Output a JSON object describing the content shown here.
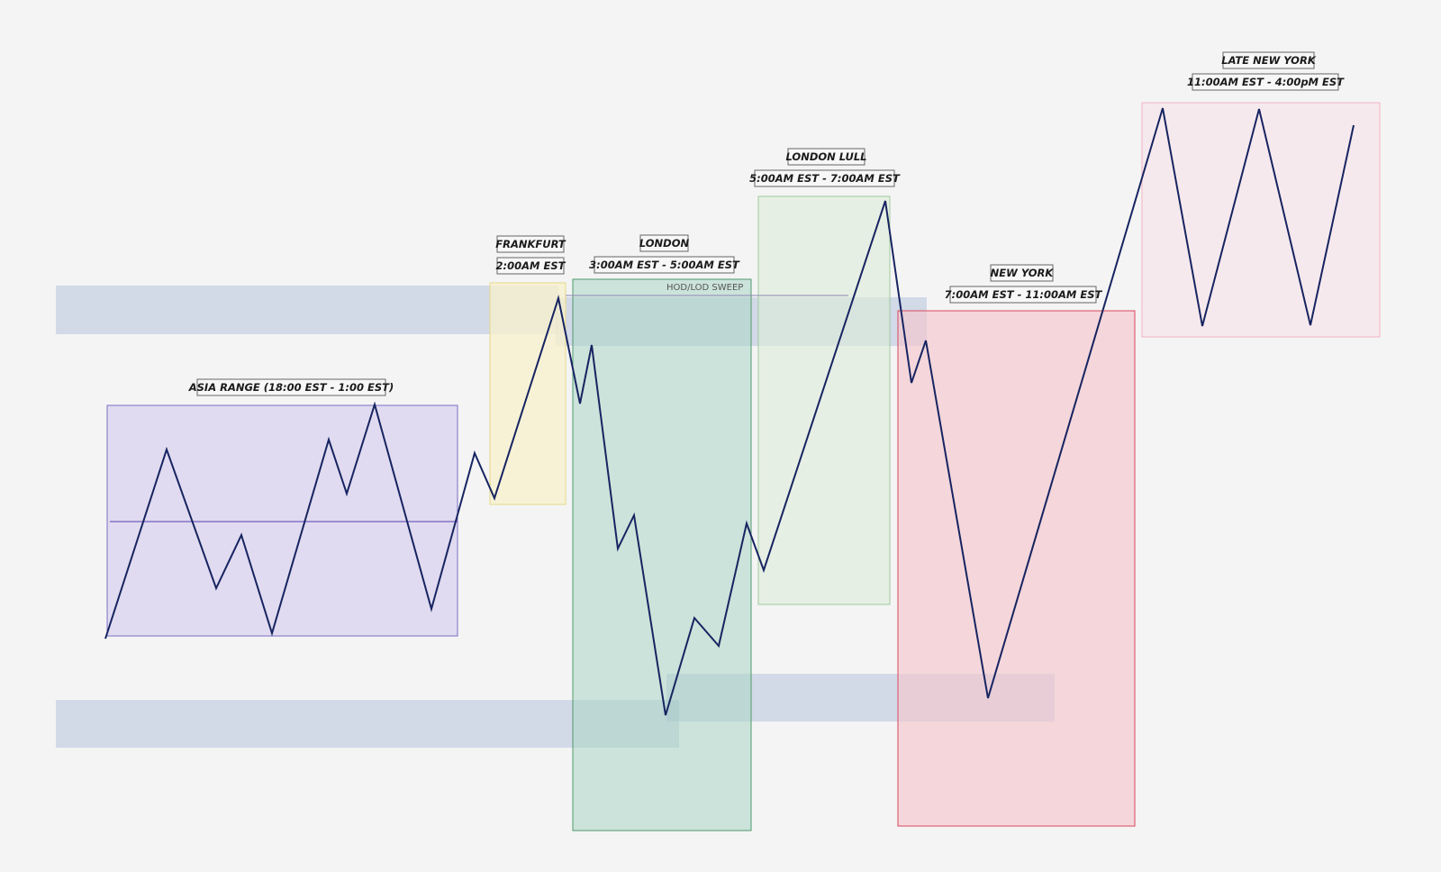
{
  "sessions": {
    "asia": {
      "label": "ASIA RANGE (18:00 EST - 1:00 EST)",
      "fill": "#dcd6ee",
      "stroke": "#7a6fc4"
    },
    "frankfurt": {
      "label": "FRANKFURT",
      "time": "2:00AM EST",
      "fill": "#f8f1cc",
      "stroke": "#e6d98a"
    },
    "london": {
      "label": "LONDON",
      "time": "3:00AM EST - 5:00AM EST",
      "fill": "#c6e3da",
      "stroke": "#4f9a6c"
    },
    "london_lull": {
      "label": "LONDON LULL",
      "time": "5:00AM EST - 7:00AM EST",
      "fill": "#e3efe3",
      "stroke": "#9fcc9f"
    },
    "new_york": {
      "label": "NEW YORK",
      "time": "7:00AM EST - 11:00AM EST",
      "fill": "#f5d3d8",
      "stroke": "#d9495e"
    },
    "late_new_york": {
      "label": "LATE NEW YORK",
      "time": "11:00AM EST - 4:00pM EST",
      "fill": "#f6e6eb",
      "stroke": "#f0b5c4"
    }
  },
  "annotations": {
    "sweep": "HOD/LOD SWEEP"
  },
  "colors": {
    "price_line": "#172461",
    "liquidity_zone": "#a8b8d6",
    "mid_line": "#5a3fb0"
  }
}
